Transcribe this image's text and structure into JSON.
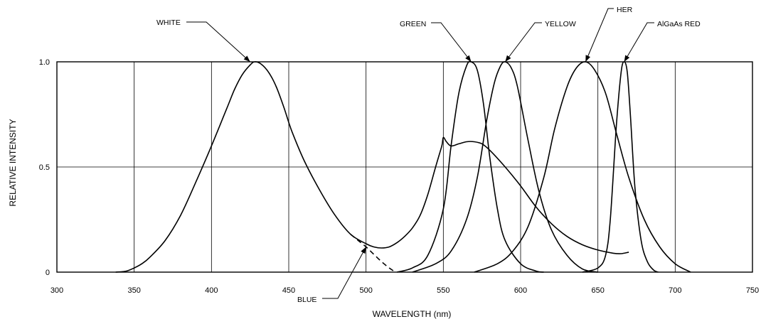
{
  "chart_data": {
    "type": "line",
    "title": "",
    "xlabel": "WAVELENGTH (nm)",
    "ylabel": "RELATIVE INTENSITY",
    "xlim": [
      300,
      750
    ],
    "ylim": [
      0,
      1.0
    ],
    "x_ticks": [
      300,
      350,
      400,
      450,
      500,
      550,
      600,
      650,
      700,
      750
    ],
    "y_ticks": [
      0,
      0.5,
      1.0
    ],
    "x_tick_labels": [
      "300",
      "350",
      "400",
      "450",
      "500",
      "550",
      "600",
      "650",
      "700",
      "750"
    ],
    "y_tick_labels": [
      "0",
      "0.5",
      "1.0"
    ],
    "x_gridlines": [
      350,
      400,
      450,
      500,
      550,
      600,
      650,
      700
    ],
    "y_gridlines": [
      0.5
    ],
    "grid": true,
    "legend": "none",
    "series": [
      {
        "label": "WHITE",
        "style": "solid",
        "x": [
          338,
          345,
          350,
          355,
          360,
          370,
          380,
          390,
          400,
          410,
          415,
          420,
          425,
          428,
          432,
          437,
          442,
          447,
          452,
          460,
          470,
          480,
          490,
          500,
          505,
          510,
          515,
          520,
          525,
          530,
          535,
          540,
          545,
          549,
          550,
          552,
          555,
          560,
          565,
          570,
          575,
          580,
          590,
          600,
          610,
          620,
          630,
          640,
          650,
          660,
          665,
          670
        ],
        "y": [
          0.0,
          0.005,
          0.02,
          0.04,
          0.07,
          0.15,
          0.27,
          0.43,
          0.6,
          0.78,
          0.87,
          0.94,
          0.985,
          1.0,
          0.99,
          0.95,
          0.88,
          0.78,
          0.67,
          0.53,
          0.39,
          0.27,
          0.18,
          0.135,
          0.12,
          0.115,
          0.12,
          0.14,
          0.17,
          0.21,
          0.27,
          0.37,
          0.5,
          0.6,
          0.64,
          0.62,
          0.6,
          0.61,
          0.62,
          0.62,
          0.61,
          0.58,
          0.5,
          0.41,
          0.31,
          0.23,
          0.17,
          0.13,
          0.105,
          0.09,
          0.088,
          0.095
        ]
      },
      {
        "label": "BLUE",
        "style": "dashed",
        "x": [
          490,
          495,
          500,
          505,
          510,
          515,
          519
        ],
        "y": [
          0.18,
          0.15,
          0.12,
          0.085,
          0.05,
          0.02,
          0.0
        ]
      },
      {
        "label": "GREEN",
        "style": "solid",
        "x": [
          520,
          530,
          540,
          550,
          555,
          560,
          565,
          568,
          572,
          576,
          580,
          585,
          590,
          600,
          610,
          615
        ],
        "y": [
          0.0,
          0.02,
          0.08,
          0.3,
          0.6,
          0.85,
          0.98,
          1.0,
          0.96,
          0.8,
          0.55,
          0.3,
          0.15,
          0.04,
          0.005,
          0.0
        ]
      },
      {
        "label": "YELLOW",
        "style": "solid",
        "x": [
          530,
          545,
          555,
          565,
          572,
          578,
          583,
          587,
          590,
          594,
          598,
          605,
          612,
          620,
          630,
          640,
          650
        ],
        "y": [
          0.0,
          0.04,
          0.1,
          0.25,
          0.45,
          0.72,
          0.9,
          0.98,
          1.0,
          0.97,
          0.88,
          0.62,
          0.38,
          0.2,
          0.08,
          0.015,
          0.0
        ]
      },
      {
        "label": "HER",
        "style": "solid",
        "x": [
          570,
          585,
          595,
          605,
          615,
          622,
          630,
          636,
          642,
          648,
          655,
          662,
          670,
          680,
          690,
          700,
          710
        ],
        "y": [
          0.0,
          0.04,
          0.1,
          0.22,
          0.45,
          0.68,
          0.88,
          0.97,
          1.0,
          0.96,
          0.85,
          0.66,
          0.45,
          0.25,
          0.12,
          0.04,
          0.0
        ]
      },
      {
        "label": "AlGaAs RED",
        "style": "solid",
        "x": [
          640,
          650,
          655,
          658,
          662,
          665,
          667,
          669,
          671,
          674,
          678,
          682,
          686,
          689
        ],
        "y": [
          0.0,
          0.02,
          0.08,
          0.25,
          0.7,
          0.95,
          1.0,
          0.95,
          0.75,
          0.4,
          0.15,
          0.05,
          0.01,
          0.0
        ]
      }
    ],
    "annotations": [
      {
        "text": "WHITE",
        "pointer_at": [
          425,
          1.0
        ]
      },
      {
        "text": "BLUE",
        "pointer_at": [
          500,
          0.12
        ]
      },
      {
        "text": "GREEN",
        "pointer_at": [
          568,
          1.0
        ]
      },
      {
        "text": "YELLOW",
        "pointer_at": [
          590,
          1.0
        ]
      },
      {
        "text": "HER",
        "pointer_at": [
          642,
          1.0
        ]
      },
      {
        "text": "AlGaAs RED",
        "pointer_at": [
          667,
          1.0
        ]
      }
    ]
  }
}
